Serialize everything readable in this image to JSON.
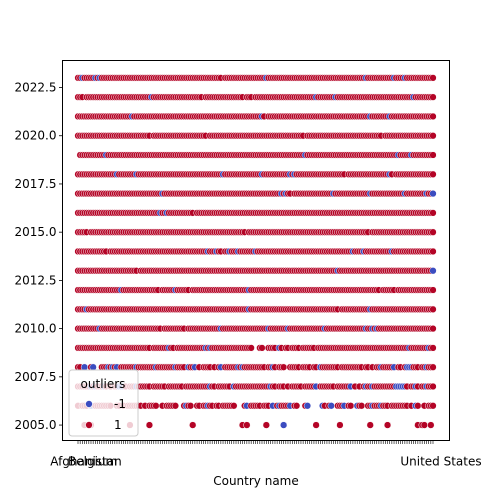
{
  "chart_data": {
    "type": "scatter",
    "title": "",
    "xlabel": "Country name",
    "ylabel": "",
    "x_tick_labels": [
      "Afghanistan",
      "Belgium",
      "United States"
    ],
    "y_ticks": [
      2005.0,
      2007.5,
      2010.0,
      2012.5,
      2015.0,
      2017.5,
      2020.0,
      2022.5
    ],
    "y_tick_labels": [
      "2005.0",
      "2007.5",
      "2010.0",
      "2012.5",
      "2015.0",
      "2017.5",
      "2020.0",
      "2022.5"
    ],
    "ylim": [
      2004.2,
      2023.9
    ],
    "years": [
      2005,
      2006,
      2007,
      2008,
      2009,
      2010,
      2011,
      2012,
      2013,
      2014,
      2015,
      2016,
      2017,
      2018,
      2019,
      2020,
      2021,
      2022,
      2023
    ],
    "n_countries": 165,
    "grid": false,
    "legend": {
      "title": "outliers",
      "placement": "lower-left",
      "entries": [
        {
          "label": "-1",
          "color": "#3b4cc0"
        },
        {
          "label": "1",
          "color": "#b40426"
        }
      ]
    },
    "colors": {
      "outlier": "#3b4cc0",
      "inlier": "#b40426"
    }
  }
}
